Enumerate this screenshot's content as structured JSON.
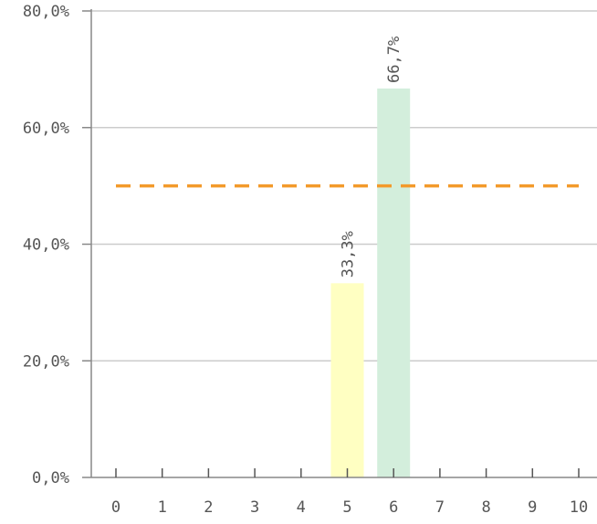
{
  "chart_data": {
    "type": "bar",
    "categories": [
      "0",
      "1",
      "2",
      "3",
      "4",
      "5",
      "6",
      "7",
      "8",
      "9",
      "10"
    ],
    "values": [
      0,
      0,
      0,
      0,
      0,
      33.3,
      66.7,
      0,
      0,
      0,
      0
    ],
    "data_labels": {
      "5": "33,3%",
      "6": "66,7%"
    },
    "bar_colors": {
      "5": "#ffffc2",
      "6": "#d3eedc"
    },
    "ylim": [
      0,
      80
    ],
    "yticks": [
      {
        "value": 0,
        "label": "0,0%"
      },
      {
        "value": 20,
        "label": "20,0%"
      },
      {
        "value": 40,
        "label": "40,0%"
      },
      {
        "value": 60,
        "label": "60,0%"
      },
      {
        "value": 80,
        "label": "80,0%"
      }
    ],
    "reference_line": {
      "value": 50,
      "color": "#f39a2b",
      "style": "dashed"
    },
    "grid": true,
    "gridline_color": "#cccccc",
    "axis_color": "#888888",
    "title": "",
    "xlabel": "",
    "ylabel": ""
  }
}
